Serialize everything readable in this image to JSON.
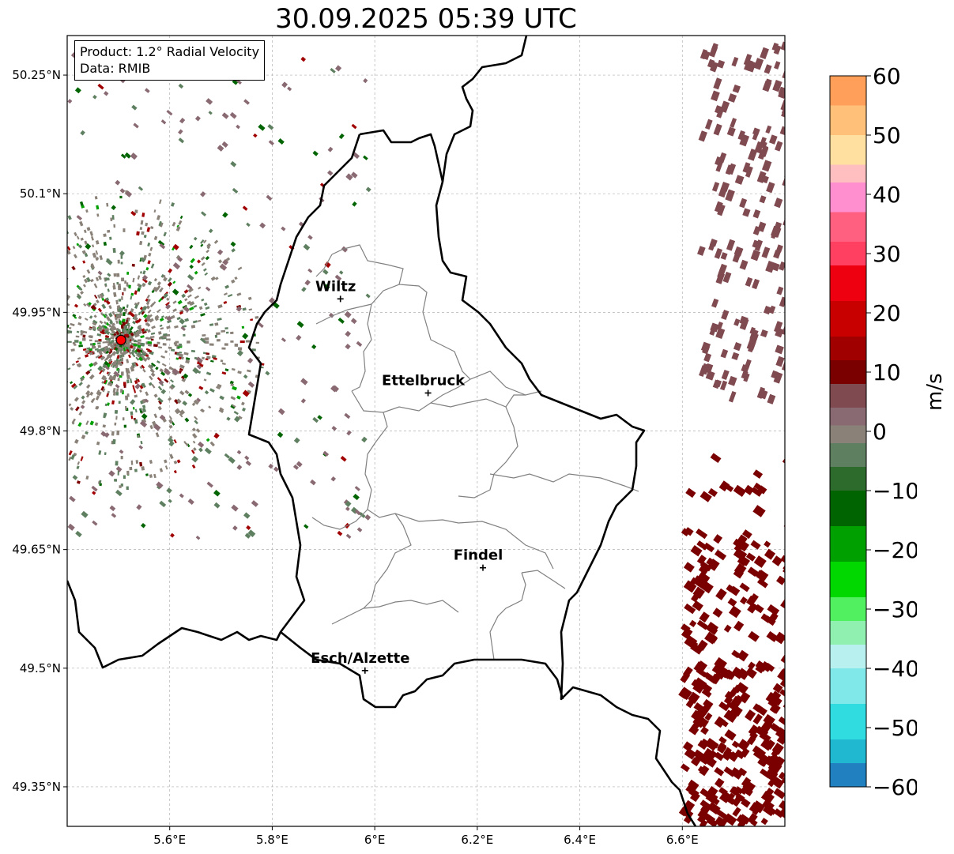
{
  "title": "30.09.2025 05:39 UTC",
  "info": {
    "product": "Product: 1.2° Radial Velocity",
    "data": "Data: RMIB"
  },
  "map": {
    "lon_range": [
      5.4,
      6.8
    ],
    "lat_range": [
      49.3,
      50.3
    ],
    "lon_ticks": [
      {
        "value": 5.6,
        "label": "5.6°E"
      },
      {
        "value": 5.8,
        "label": "5.8°E"
      },
      {
        "value": 6.0,
        "label": "6°E"
      },
      {
        "value": 6.2,
        "label": "6.2°E"
      },
      {
        "value": 6.4,
        "label": "6.4°E"
      },
      {
        "value": 6.6,
        "label": "6.6°E"
      }
    ],
    "lat_ticks": [
      {
        "value": 49.35,
        "label": "49.35°N"
      },
      {
        "value": 49.5,
        "label": "49.5°N"
      },
      {
        "value": 49.65,
        "label": "49.65°N"
      },
      {
        "value": 49.8,
        "label": "49.8°N"
      },
      {
        "value": 49.95,
        "label": "49.95°N"
      },
      {
        "value": 50.1,
        "label": "50.1°N"
      },
      {
        "value": 50.25,
        "label": "50.25°N"
      }
    ],
    "radar_site": {
      "lon": 5.505,
      "lat": 49.915
    },
    "cities": [
      {
        "name": "Wiltz",
        "lon": 5.933,
        "lat": 49.967
      },
      {
        "name": "Ettelbruck",
        "lon": 6.104,
        "lat": 49.848
      },
      {
        "name": "Findel",
        "lon": 6.211,
        "lat": 49.627
      },
      {
        "name": "Esch/Alzette",
        "lon": 5.981,
        "lat": 49.497
      }
    ]
  },
  "colorbar": {
    "unit": "m/s",
    "min": -60,
    "max": 60,
    "ticks": [
      {
        "value": 60,
        "label": "60"
      },
      {
        "value": 50,
        "label": "50"
      },
      {
        "value": 40,
        "label": "40"
      },
      {
        "value": 30,
        "label": "30"
      },
      {
        "value": 20,
        "label": "20"
      },
      {
        "value": 10,
        "label": "10"
      },
      {
        "value": 0,
        "label": "0"
      },
      {
        "value": -10,
        "label": "−10"
      },
      {
        "value": -20,
        "label": "−20"
      },
      {
        "value": -30,
        "label": "−30"
      },
      {
        "value": -40,
        "label": "−40"
      },
      {
        "value": -50,
        "label": "−50"
      },
      {
        "value": -60,
        "label": "−60"
      }
    ],
    "segments": [
      {
        "from": 55,
        "to": 60,
        "color": "#ff9f5a"
      },
      {
        "from": 50,
        "to": 55,
        "color": "#ffc07a"
      },
      {
        "from": 45,
        "to": 50,
        "color": "#ffe0a0"
      },
      {
        "from": 42,
        "to": 45,
        "color": "#ffbfc0"
      },
      {
        "from": 37,
        "to": 42,
        "color": "#ff8fcf"
      },
      {
        "from": 32,
        "to": 37,
        "color": "#ff6080"
      },
      {
        "from": 28,
        "to": 32,
        "color": "#ff4060"
      },
      {
        "from": 22,
        "to": 28,
        "color": "#ef0010"
      },
      {
        "from": 16,
        "to": 22,
        "color": "#c80000"
      },
      {
        "from": 12,
        "to": 16,
        "color": "#a00000"
      },
      {
        "from": 8,
        "to": 12,
        "color": "#7a0000"
      },
      {
        "from": 4,
        "to": 8,
        "color": "#7f4a50"
      },
      {
        "from": 1,
        "to": 4,
        "color": "#8a6a72"
      },
      {
        "from": -2,
        "to": 1,
        "color": "#8a8278"
      },
      {
        "from": -6,
        "to": -2,
        "color": "#5f8060"
      },
      {
        "from": -10,
        "to": -6,
        "color": "#2d6b2d"
      },
      {
        "from": -16,
        "to": -10,
        "color": "#006400"
      },
      {
        "from": -22,
        "to": -16,
        "color": "#00a000"
      },
      {
        "from": -28,
        "to": -22,
        "color": "#00d800"
      },
      {
        "from": -32,
        "to": -28,
        "color": "#50f060"
      },
      {
        "from": -36,
        "to": -32,
        "color": "#90f0b0"
      },
      {
        "from": -40,
        "to": -36,
        "color": "#b8f0f0"
      },
      {
        "from": -46,
        "to": -40,
        "color": "#80e8e8"
      },
      {
        "from": -52,
        "to": -46,
        "color": "#30dce0"
      },
      {
        "from": -56,
        "to": -52,
        "color": "#20b8d0"
      },
      {
        "from": -60,
        "to": -56,
        "color": "#2080c0"
      }
    ]
  }
}
